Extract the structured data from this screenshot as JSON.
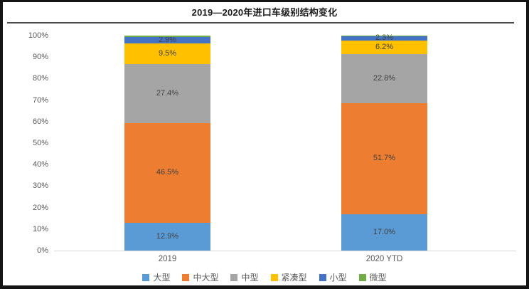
{
  "chart_data": {
    "type": "bar",
    "stacked": true,
    "title": "2019—2020年进口车级别结构变化",
    "categories": [
      "2019",
      "2020 YTD"
    ],
    "series": [
      {
        "name": "大型",
        "color": "#5B9BD5",
        "values": [
          12.9,
          17.0
        ],
        "labels": [
          "12.9%",
          "17.0%"
        ]
      },
      {
        "name": "中大型",
        "color": "#ED7D31",
        "values": [
          46.5,
          51.7
        ],
        "labels": [
          "46.5%",
          "51.7%"
        ]
      },
      {
        "name": "中型",
        "color": "#A5A5A5",
        "values": [
          27.4,
          22.8
        ],
        "labels": [
          "27.4%",
          "22.8%"
        ]
      },
      {
        "name": "紧凑型",
        "color": "#FFC000",
        "values": [
          9.5,
          6.2
        ],
        "labels": [
          "9.5%",
          "6.2%"
        ]
      },
      {
        "name": "小型",
        "color": "#4472C4",
        "values": [
          2.9,
          2.3
        ],
        "labels": [
          "2.9%",
          "2.3%"
        ]
      },
      {
        "name": "微型",
        "color": "#70AD47",
        "values": [
          0.8,
          0.1
        ],
        "labels": [
          "",
          ""
        ]
      }
    ],
    "ylim": [
      0,
      100
    ],
    "ytick_labels": [
      "0%",
      "10%",
      "20%",
      "30%",
      "40%",
      "50%",
      "60%",
      "70%",
      "80%",
      "90%",
      "100%"
    ],
    "grid": false,
    "legend_position": "bottom",
    "xlabel": "",
    "ylabel": ""
  }
}
